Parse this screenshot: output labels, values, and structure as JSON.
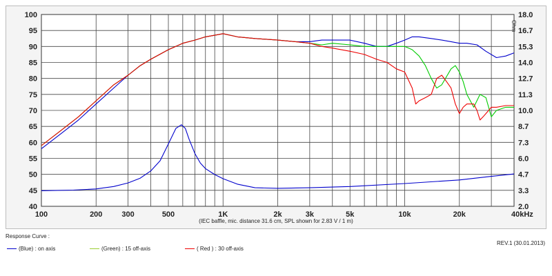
{
  "chart_data": {
    "type": "line",
    "title": "",
    "caption": "(IEC baffle, mic. distance 31.6 cm, SPL shown for 2.83 V / 1 m)",
    "xlabel": "",
    "ylabel": "",
    "x_scale": "log",
    "xlim": [
      100,
      40000
    ],
    "ylim": [
      40,
      100
    ],
    "y_right_lim": [
      2.0,
      18.0
    ],
    "y_right_unit": "Ohm",
    "grid": true,
    "x_ticks": [
      {
        "value": 100,
        "label": "100"
      },
      {
        "value": 200,
        "label": "200"
      },
      {
        "value": 300,
        "label": "300"
      },
      {
        "value": 500,
        "label": "500"
      },
      {
        "value": 1000,
        "label": "1K"
      },
      {
        "value": 2000,
        "label": "2k"
      },
      {
        "value": 3000,
        "label": "3k"
      },
      {
        "value": 5000,
        "label": "5k"
      },
      {
        "value": 10000,
        "label": "10k"
      },
      {
        "value": 20000,
        "label": "20k"
      },
      {
        "value": 40000,
        "label": "40kHz"
      }
    ],
    "y_ticks": [
      40,
      45,
      50,
      55,
      60,
      65,
      70,
      75,
      80,
      85,
      90,
      95,
      100
    ],
    "y_right_ticks": [
      "2.0",
      "3.3",
      "4.7",
      "6.0",
      "7.3",
      "8.7",
      "10.0",
      "11.3",
      "12.7",
      "14.0",
      "15.3",
      "16.7",
      "18.0"
    ],
    "series": [
      {
        "name": "(Blue) : on axis",
        "color": "#0000cc",
        "x": [
          100,
          130,
          160,
          200,
          250,
          300,
          350,
          400,
          500,
          600,
          700,
          800,
          900,
          1000,
          1200,
          1500,
          2000,
          2500,
          3000,
          3500,
          4000,
          5000,
          6000,
          7000,
          8000,
          9000,
          10000,
          11000,
          12000,
          14000,
          16000,
          18000,
          20000,
          22000,
          25000,
          28000,
          32000,
          36000,
          40000
        ],
        "y": [
          58,
          63,
          67,
          72,
          77,
          81,
          84,
          86,
          89,
          91,
          92,
          93,
          93.5,
          94,
          93,
          92.5,
          92,
          91.5,
          91.5,
          92,
          92,
          92,
          91,
          90,
          90,
          91,
          92,
          93,
          93,
          92.5,
          92,
          91.5,
          91,
          91,
          90.5,
          88.5,
          86.5,
          87,
          88
        ]
      },
      {
        "name": "(Green) : 15 off-axis",
        "color": "#00cc00",
        "x": [
          100,
          130,
          160,
          200,
          250,
          300,
          350,
          400,
          500,
          600,
          700,
          800,
          900,
          1000,
          1200,
          1500,
          2000,
          2500,
          3000,
          3500,
          4000,
          5000,
          6000,
          7000,
          8000,
          9000,
          10000,
          11000,
          12000,
          13000,
          14000,
          15000,
          16000,
          18000,
          19000,
          20000,
          21000,
          22000,
          24000,
          26000,
          28000,
          30000,
          32000,
          36000,
          40000
        ],
        "y": [
          59,
          64,
          68,
          73,
          78,
          81,
          84,
          86,
          89,
          91,
          92,
          93,
          93.5,
          94,
          93,
          92.5,
          92,
          91.5,
          91,
          90.5,
          91,
          90.5,
          90,
          90,
          90,
          90,
          90,
          89,
          87,
          84,
          80,
          77,
          78,
          83,
          84,
          82,
          79,
          75,
          71,
          75,
          74,
          68,
          70,
          71,
          71
        ]
      },
      {
        "name": "( Red ) : 30 off-axis",
        "color": "#ee0000",
        "x": [
          100,
          130,
          160,
          200,
          250,
          300,
          350,
          400,
          500,
          600,
          700,
          800,
          900,
          1000,
          1200,
          1500,
          2000,
          2500,
          3000,
          3500,
          4000,
          5000,
          6000,
          7000,
          8000,
          9000,
          10000,
          11000,
          11500,
          12000,
          13000,
          14000,
          15000,
          16000,
          17000,
          18000,
          19000,
          20000,
          21000,
          22000,
          23000,
          24000,
          25000,
          26000,
          27000,
          28000,
          29000,
          30000,
          32000,
          36000,
          40000
        ],
        "y": [
          59,
          64,
          68,
          73,
          78,
          81,
          84,
          86,
          89,
          91,
          92,
          93,
          93.5,
          94,
          93,
          92.5,
          92,
          91.5,
          91,
          90,
          89.5,
          88.5,
          87.5,
          86,
          85,
          83,
          82,
          77,
          72,
          73,
          74,
          75,
          80,
          81,
          79,
          77,
          72,
          69,
          71,
          72,
          72,
          72,
          70,
          67,
          68,
          69,
          70,
          71,
          71,
          71.5,
          71.5
        ]
      },
      {
        "name": "Impedance",
        "axis": "right",
        "color": "#0000cc",
        "x": [
          100,
          150,
          200,
          250,
          300,
          350,
          400,
          450,
          500,
          550,
          590,
          620,
          650,
          700,
          750,
          800,
          900,
          1000,
          1200,
          1500,
          2000,
          3000,
          5000,
          10000,
          20000,
          30000,
          40000
        ],
        "y": [
          3.3,
          3.35,
          3.45,
          3.65,
          3.95,
          4.35,
          4.95,
          5.8,
          7.2,
          8.5,
          8.8,
          8.5,
          7.6,
          6.4,
          5.6,
          5.15,
          4.65,
          4.3,
          3.85,
          3.55,
          3.5,
          3.55,
          3.65,
          3.9,
          4.2,
          4.5,
          4.7
        ]
      }
    ]
  },
  "caption_text": "(IEC baffle, mic. distance 31.6 cm, SPL shown for 2.83 V / 1 m)",
  "footer": {
    "title": "Response Curve :",
    "legend": [
      {
        "color": "#0000cc",
        "label": "(Blue)  : on axis"
      },
      {
        "color": "#9acd32",
        "label": "(Green) : 15 off-axis"
      },
      {
        "color": "#ee0000",
        "label": "( Red ) : 30 off-axis"
      }
    ],
    "revision": "REV.1 (30.01.2013)"
  },
  "right_axis_unit": "Ohm"
}
